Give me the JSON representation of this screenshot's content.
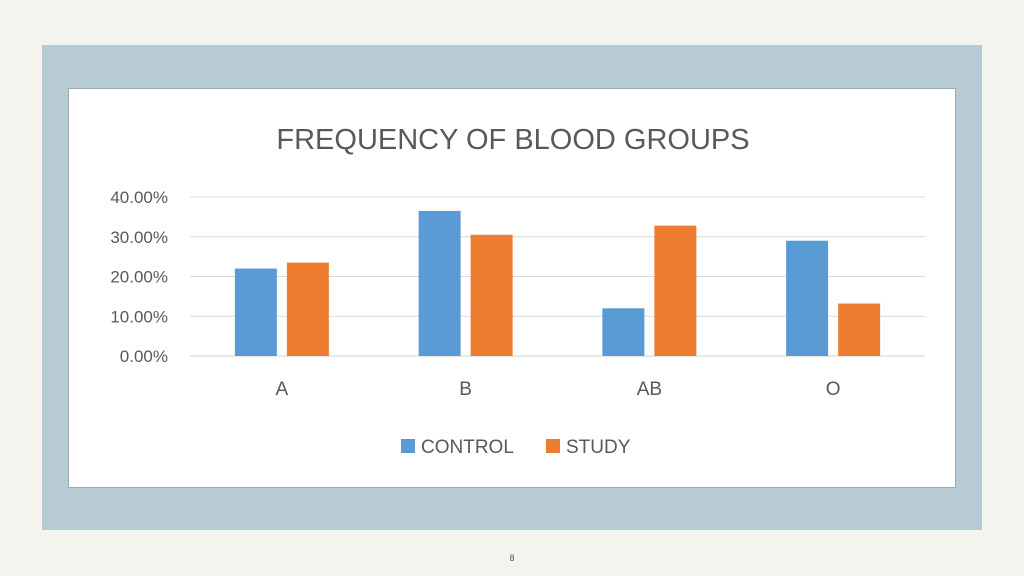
{
  "page": {
    "number": "8"
  },
  "chart_data": {
    "type": "bar",
    "title": "FREQUENCY OF BLOOD GROUPS",
    "xlabel": "",
    "ylabel": "",
    "categories": [
      "A",
      "B",
      "AB",
      "O"
    ],
    "series": [
      {
        "name": "CONTROL",
        "color": "#5b9bd5",
        "values": [
          22.0,
          36.5,
          12.0,
          29.0
        ]
      },
      {
        "name": "STUDY",
        "color": "#ed7d31",
        "values": [
          23.5,
          30.5,
          32.8,
          13.2
        ]
      }
    ],
    "ylim": [
      0,
      40
    ],
    "yticks": [
      "0.00%",
      "10.00%",
      "20.00%",
      "30.00%",
      "40.00%"
    ],
    "grid": true,
    "legend": "bottom"
  }
}
